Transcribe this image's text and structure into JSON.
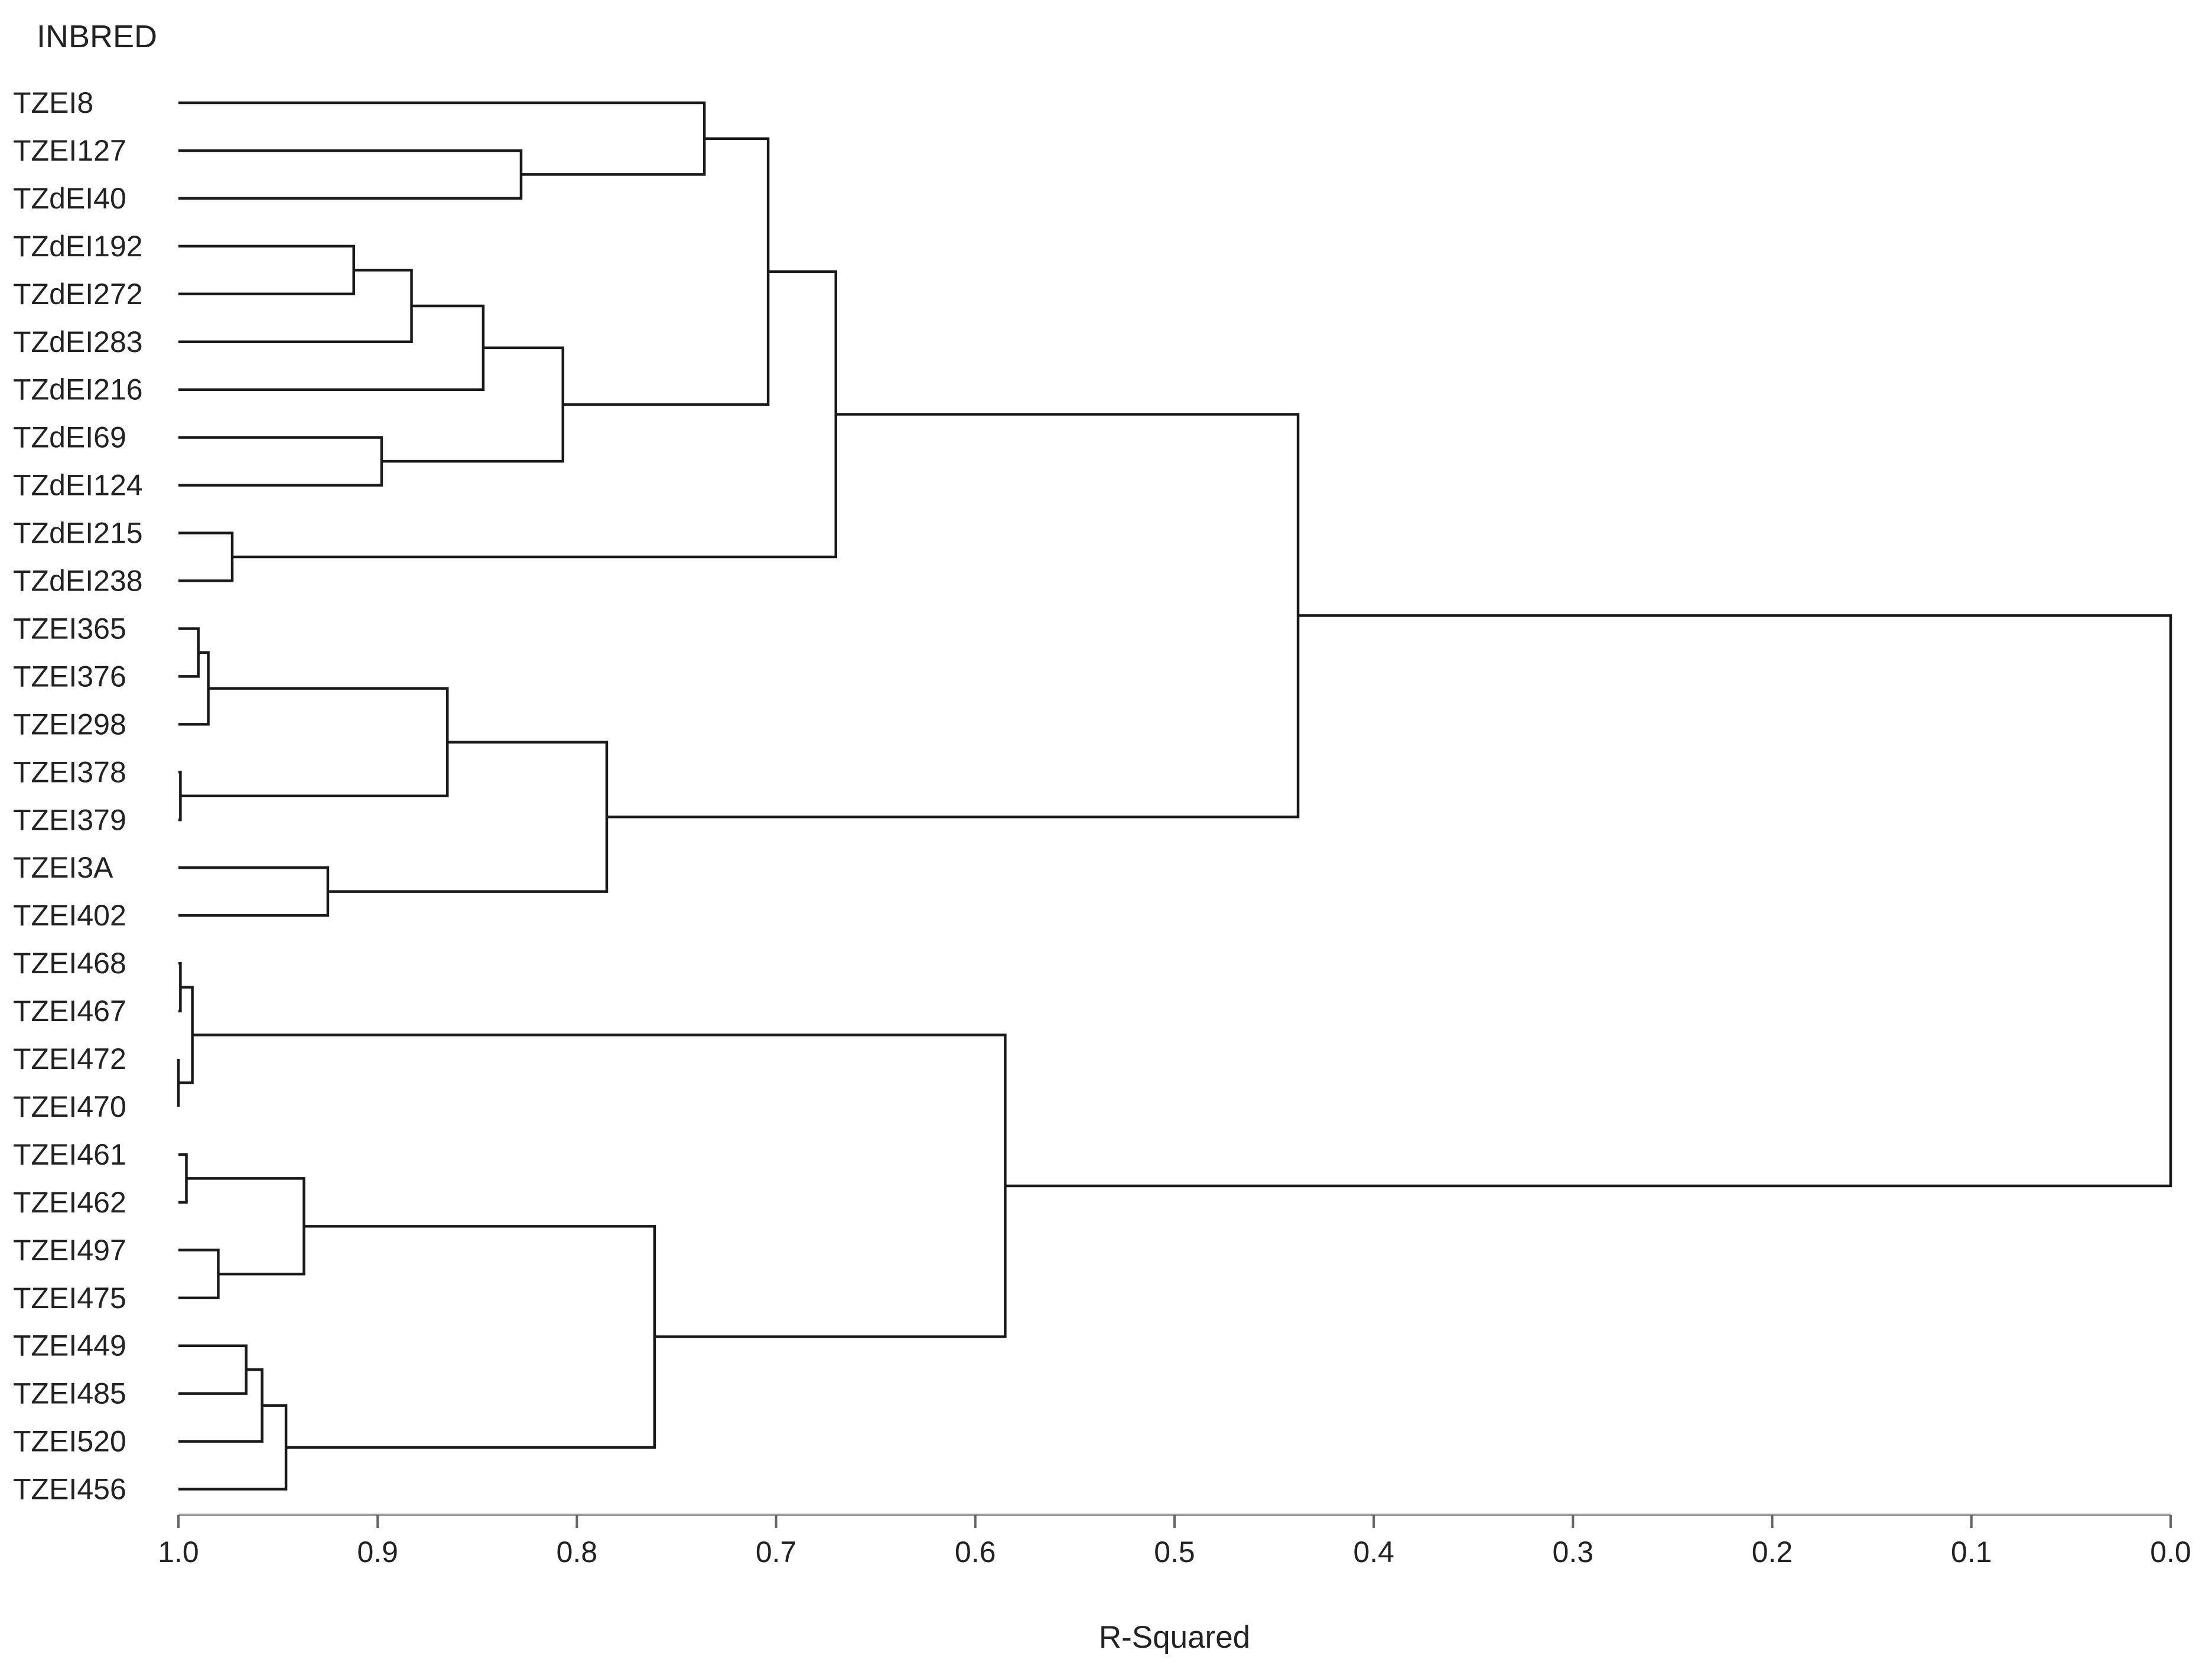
{
  "chart_data": {
    "type": "dendrogram",
    "header": "INBRED",
    "xlabel": "R-Squared",
    "xlim": [
      1.0,
      0.0
    ],
    "x_ticks": [
      "1.0",
      "0.9",
      "0.8",
      "0.7",
      "0.6",
      "0.5",
      "0.4",
      "0.3",
      "0.2",
      "0.1",
      "0.0"
    ],
    "leaves": [
      "TZEI8",
      "TZEI127",
      "TZdEI40",
      "TZdEI192",
      "TZdEI272",
      "TZdEI283",
      "TZdEI216",
      "TZdEI69",
      "TZdEI124",
      "TZdEI215",
      "TZdEI238",
      "TZEI365",
      "TZEI376",
      "TZEI298",
      "TZEI378",
      "TZEI379",
      "TZEI3A",
      "TZEI402",
      "TZEI468",
      "TZEI467",
      "TZEI472",
      "TZEI470",
      "TZEI461",
      "TZEI462",
      "TZEI497",
      "TZEI475",
      "TZEI449",
      "TZEI485",
      "TZEI520",
      "TZEI456"
    ],
    "merges": [
      {
        "id": "m1",
        "a": "TZEI127",
        "b": "TZdEI40",
        "height": 0.828
      },
      {
        "id": "m2",
        "a": "TZEI8",
        "b": "m1",
        "height": 0.736
      },
      {
        "id": "m3",
        "a": "TZdEI192",
        "b": "TZdEI272",
        "height": 0.912
      },
      {
        "id": "m4",
        "a": "m3",
        "b": "TZdEI283",
        "height": 0.883
      },
      {
        "id": "m5",
        "a": "m4",
        "b": "TZdEI216",
        "height": 0.847
      },
      {
        "id": "m6",
        "a": "TZdEI69",
        "b": "TZdEI124",
        "height": 0.898
      },
      {
        "id": "m7",
        "a": "m5",
        "b": "m6",
        "height": 0.807
      },
      {
        "id": "m8",
        "a": "m2",
        "b": "m7",
        "height": 0.704
      },
      {
        "id": "m9",
        "a": "TZdEI215",
        "b": "TZdEI238",
        "height": 0.973
      },
      {
        "id": "m10",
        "a": "m8",
        "b": "m9",
        "height": 0.67
      },
      {
        "id": "m11",
        "a": "TZEI365",
        "b": "TZEI376",
        "height": 0.99
      },
      {
        "id": "m12",
        "a": "m11",
        "b": "TZEI298",
        "height": 0.985
      },
      {
        "id": "m13",
        "a": "TZEI378",
        "b": "TZEI379",
        "height": 0.999
      },
      {
        "id": "m14",
        "a": "m12",
        "b": "m13",
        "height": 0.865
      },
      {
        "id": "m15",
        "a": "TZEI3A",
        "b": "TZEI402",
        "height": 0.925
      },
      {
        "id": "m16",
        "a": "m14",
        "b": "m15",
        "height": 0.785
      },
      {
        "id": "m17",
        "a": "m10",
        "b": "m16",
        "height": 0.438
      },
      {
        "id": "m18",
        "a": "TZEI468",
        "b": "TZEI467",
        "height": 0.999
      },
      {
        "id": "m19",
        "a": "TZEI472",
        "b": "TZEI470",
        "height": 1.0
      },
      {
        "id": "m20",
        "a": "m18",
        "b": "m19",
        "height": 0.993
      },
      {
        "id": "m21",
        "a": "TZEI461",
        "b": "TZEI462",
        "height": 0.996
      },
      {
        "id": "m22",
        "a": "TZEI497",
        "b": "TZEI475",
        "height": 0.98
      },
      {
        "id": "m23",
        "a": "m21",
        "b": "m22",
        "height": 0.937
      },
      {
        "id": "m24",
        "a": "TZEI449",
        "b": "TZEI485",
        "height": 0.966
      },
      {
        "id": "m25",
        "a": "m24",
        "b": "TZEI520",
        "height": 0.958
      },
      {
        "id": "m26",
        "a": "m25",
        "b": "TZEI456",
        "height": 0.946
      },
      {
        "id": "m27",
        "a": "m23",
        "b": "m26",
        "height": 0.761
      },
      {
        "id": "m28",
        "a": "m20",
        "b": "m27",
        "height": 0.585
      },
      {
        "id": "m29",
        "a": "m17",
        "b": "m28",
        "height": 0.0
      }
    ]
  }
}
